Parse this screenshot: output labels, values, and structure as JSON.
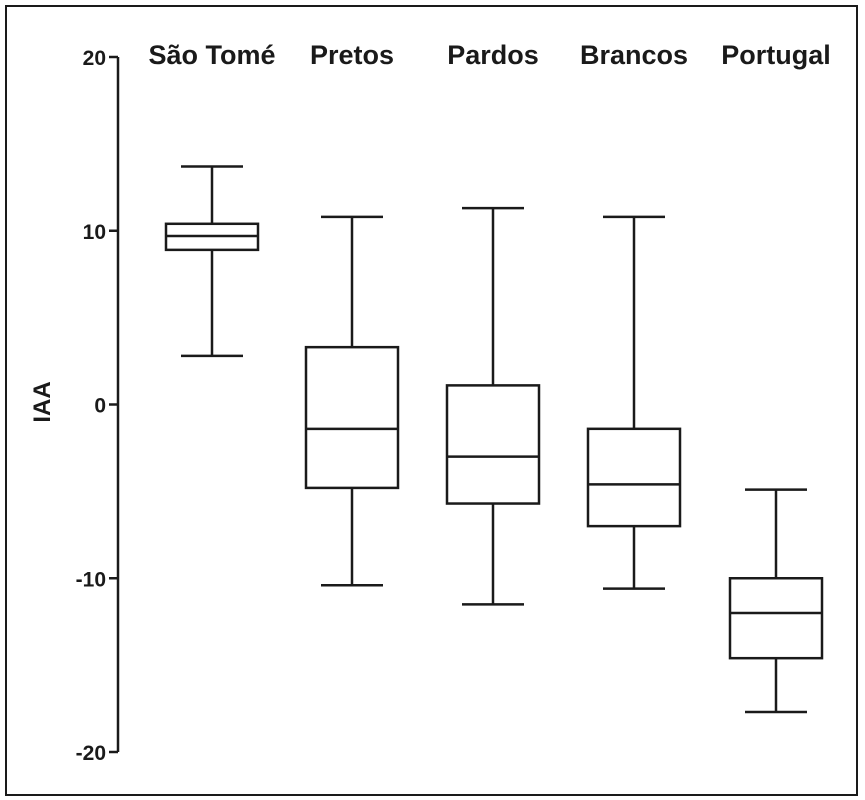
{
  "chart_data": {
    "type": "boxplot",
    "title": "",
    "xlabel": "",
    "ylabel": "IAA",
    "ylim": [
      -20,
      20
    ],
    "yticks": [
      20,
      10,
      0,
      -10,
      -20
    ],
    "ytick_labels": [
      "20",
      "10",
      "0",
      "-10",
      "-20"
    ],
    "categories": [
      "São Tomé",
      "Pretos",
      "Pardos",
      "Brancos",
      "Portugal"
    ],
    "boxes": [
      {
        "category": "São Tomé",
        "whisker_low": 2.8,
        "q1": 8.9,
        "median": 9.7,
        "q3": 10.4,
        "whisker_high": 13.7
      },
      {
        "category": "Pretos",
        "whisker_low": -10.4,
        "q1": -4.8,
        "median": -1.4,
        "q3": 3.3,
        "whisker_high": 10.8
      },
      {
        "category": "Pardos",
        "whisker_low": -11.5,
        "q1": -5.7,
        "median": -3.0,
        "q3": 1.1,
        "whisker_high": 11.3
      },
      {
        "category": "Brancos",
        "whisker_low": -10.6,
        "q1": -7.0,
        "median": -4.6,
        "q3": -1.4,
        "whisker_high": 10.8
      },
      {
        "category": "Portugal",
        "whisker_low": -17.7,
        "q1": -14.6,
        "median": -12.0,
        "q3": -10.0,
        "whisker_high": -4.9
      }
    ],
    "grid": false,
    "legend": "none",
    "colors": {
      "ink": "#1a1a1a",
      "background": "#ffffff"
    }
  }
}
